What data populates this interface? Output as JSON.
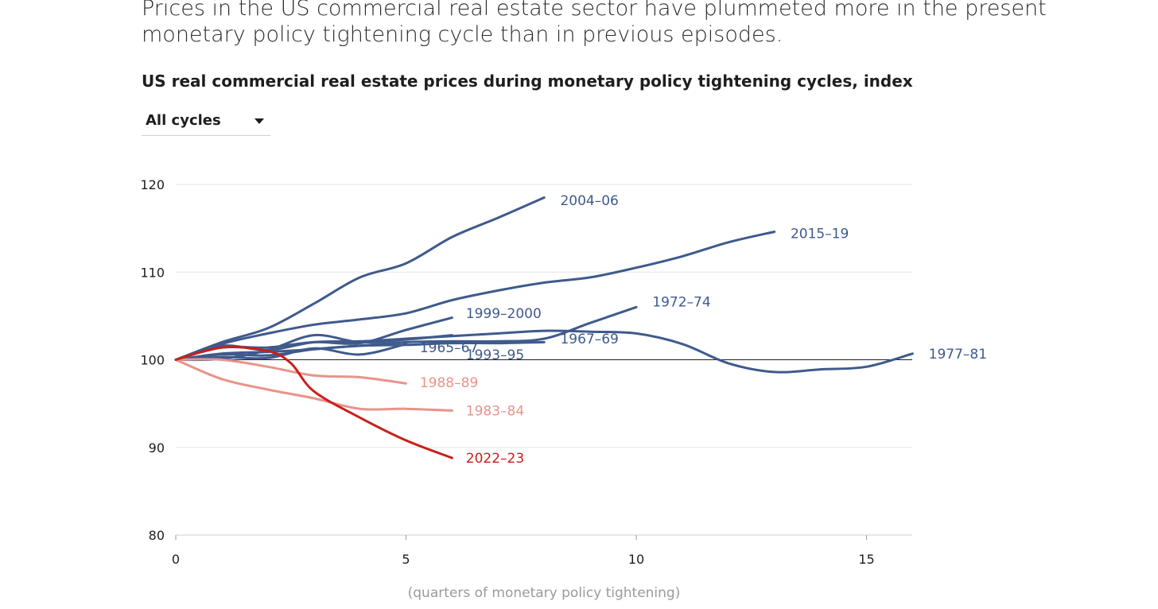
{
  "lead_text": {
    "line1": "Prices in the US commercial real estate sector have plummeted more in the present",
    "line2": "monetary policy tightening cycle than in previous episodes."
  },
  "selector": {
    "selected": "All cycles",
    "icon": "caret-down-icon"
  },
  "chart_data": {
    "type": "line",
    "title": "US real commercial real estate prices during monetary policy tightening cycles, index",
    "xlabel": "(quarters of monetary policy tightening)",
    "ylabel": "",
    "xlim": [
      0,
      16
    ],
    "ylim": [
      80,
      120
    ],
    "x_ticks": [
      0,
      5,
      10,
      15
    ],
    "y_ticks": [
      80,
      90,
      100,
      110,
      120
    ],
    "grid": "horizontal",
    "reference_line": 100,
    "colors": {
      "previous_cycles": "#3f5a8c",
      "pink_cycles": "#e8948a",
      "current_cycle": "#c8201a",
      "grid": "#e6e6e6",
      "baseline": "#1e1e1e"
    },
    "series": [
      {
        "name": "2004–06",
        "color": "#3f5a8c",
        "x": [
          0,
          1,
          2,
          3,
          4,
          5,
          6,
          7,
          8
        ],
        "values": [
          100,
          102.0,
          103.6,
          106.4,
          109.4,
          111.0,
          114.0,
          116.2,
          118.5
        ]
      },
      {
        "name": "2015–19",
        "color": "#3f5a8c",
        "x": [
          0,
          1,
          2,
          3,
          4,
          5,
          6,
          7,
          8,
          9,
          10,
          11,
          12,
          13
        ],
        "values": [
          100,
          101.8,
          103.0,
          104.0,
          104.6,
          105.3,
          106.8,
          107.9,
          108.8,
          109.4,
          110.5,
          111.8,
          113.4,
          114.6
        ]
      },
      {
        "name": "1972–74",
        "color": "#3f5a8c",
        "x": [
          0,
          1,
          2,
          3,
          4,
          5,
          6,
          7,
          8,
          9,
          10
        ],
        "values": [
          100,
          100.6,
          100.5,
          101.2,
          101.6,
          102.0,
          102.1,
          102.1,
          102.4,
          104.2,
          106.0
        ]
      },
      {
        "name": "1999–2000",
        "color": "#3f5a8c",
        "x": [
          0,
          1,
          2,
          3,
          4,
          5,
          6
        ],
        "values": [
          100,
          101.4,
          101.4,
          102.0,
          101.9,
          103.4,
          104.8
        ]
      },
      {
        "name": "1967–69",
        "color": "#3f5a8c",
        "x": [
          0,
          1,
          2,
          3,
          4,
          5,
          6,
          7,
          8
        ],
        "values": [
          100,
          100.7,
          100.9,
          101.2,
          101.6,
          101.7,
          101.9,
          101.9,
          102.0
        ]
      },
      {
        "name": "1977–81",
        "color": "#3f5a8c",
        "x": [
          0,
          1,
          2,
          3,
          4,
          5,
          6,
          7,
          8,
          9,
          10,
          11,
          12,
          13,
          14,
          15,
          16
        ],
        "values": [
          100,
          101.6,
          101.1,
          102.0,
          102.1,
          102.4,
          102.7,
          103.0,
          103.3,
          103.2,
          103.0,
          101.8,
          99.6,
          98.6,
          98.9,
          99.2,
          100.7
        ]
      },
      {
        "name": "1965–67",
        "color": "#3f5a8c",
        "x": [
          0,
          1,
          2,
          3,
          4,
          5
        ],
        "values": [
          100,
          100.3,
          100.2,
          101.3,
          100.6,
          101.8
        ]
      },
      {
        "name": "1993–95",
        "color": "#3f5a8c",
        "x": [
          0,
          1,
          2,
          3,
          4,
          5,
          6
        ],
        "values": [
          100,
          100.1,
          101.1,
          102.8,
          102.0,
          102.3,
          102.8
        ]
      },
      {
        "name": "1988–89",
        "color": "#e8948a",
        "x": [
          0,
          1,
          2,
          3,
          4,
          5
        ],
        "values": [
          100,
          100.0,
          99.2,
          98.2,
          98.0,
          97.3
        ]
      },
      {
        "name": "1983–84",
        "color": "#e8948a",
        "x": [
          0,
          1,
          2,
          3,
          4,
          5,
          6
        ],
        "values": [
          100,
          97.8,
          96.6,
          95.6,
          94.4,
          94.4,
          94.2
        ]
      },
      {
        "name": "2022–23",
        "color": "#c8201a",
        "x": [
          0,
          1,
          2,
          2.5,
          3,
          4,
          5,
          6
        ],
        "values": [
          100,
          101.4,
          101.0,
          99.6,
          96.4,
          93.4,
          90.8,
          88.8
        ]
      }
    ],
    "labels": [
      {
        "text": "2004–06",
        "x": 8.35,
        "y": 118.2,
        "color": "#3f5a8c"
      },
      {
        "text": "2015–19",
        "x": 13.35,
        "y": 114.4,
        "color": "#3f5a8c"
      },
      {
        "text": "1972–74",
        "x": 10.35,
        "y": 106.6,
        "color": "#3f5a8c"
      },
      {
        "text": "1999–2000",
        "x": 6.3,
        "y": 105.3,
        "color": "#3f5a8c"
      },
      {
        "text": "1967–69",
        "x": 8.35,
        "y": 102.4,
        "color": "#3f5a8c"
      },
      {
        "text": "1977–81",
        "x": 16.35,
        "y": 100.7,
        "color": "#3f5a8c"
      },
      {
        "text": "1965–67",
        "x": 5.3,
        "y": 101.4,
        "color": "#3f5a8c"
      },
      {
        "text": "1993–95",
        "x": 6.3,
        "y": 100.6,
        "color": "#3f5a8c"
      },
      {
        "text": "1988–89",
        "x": 5.3,
        "y": 97.4,
        "color": "#e8948a"
      },
      {
        "text": "1983–84",
        "x": 6.3,
        "y": 94.2,
        "color": "#e8948a"
      },
      {
        "text": "2022–23",
        "x": 6.3,
        "y": 88.8,
        "color": "#c8201a"
      }
    ]
  }
}
